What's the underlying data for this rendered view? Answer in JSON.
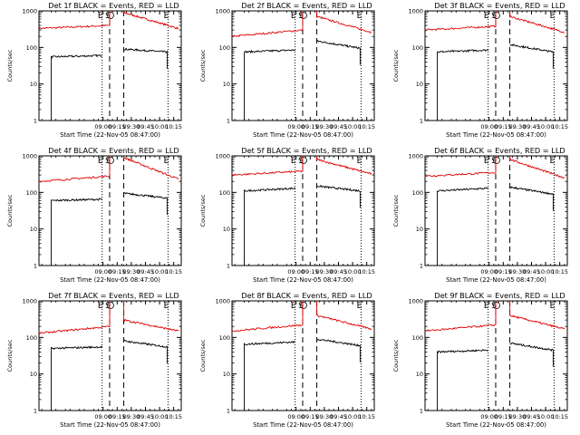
{
  "chart_data": [
    {
      "type": "line",
      "title": "Det 1f BLACK = Events, RED = LLD",
      "xlabel": "Start Time (22-Nov-05 08:47:00)",
      "ylabel": "Counts/sec",
      "xlim": [
        "07:52",
        "10:23"
      ],
      "ylim": [
        1,
        1000
      ],
      "y_scale": "log",
      "x_tick_labels": [
        "09:00",
        "09:15",
        "09:30",
        "09:45",
        "10:00",
        "10:15"
      ],
      "y_tick_labels": [
        "1",
        "10",
        "100",
        "1000"
      ],
      "markers": [
        {
          "label": "E",
          "time": "08:59"
        },
        {
          "label": "S",
          "time": "09:07"
        },
        {
          "label": "E",
          "time": "10:09"
        }
      ],
      "vlines_dotted": [
        "08:59",
        "10:09"
      ],
      "vlines_dashed": [
        "09:07",
        "09:22"
      ],
      "series": [
        {
          "name": "RED = LLD",
          "color": "#e00000",
          "segments": [
            {
              "t0": "07:52",
              "t1": "09:07",
              "y0": 330,
              "y1": 400
            },
            {
              "t0": "09:22",
              "t1": "10:20",
              "y0": 900,
              "y1": 330
            }
          ]
        },
        {
          "name": "BLACK = Events",
          "color": "#000000",
          "segments": [
            {
              "t0": "08:05",
              "t1": "08:59",
              "y0": 55,
              "y1": 60
            },
            {
              "t0": "09:22",
              "t1": "10:08",
              "y0": 90,
              "y1": 75
            }
          ]
        }
      ]
    },
    {
      "type": "line",
      "title": "Det 2f BLACK = Events, RED = LLD",
      "xlabel": "Start Time (22-Nov-05 08:47:00)",
      "ylabel": "Counts/sec",
      "xlim": [
        "07:52",
        "10:23"
      ],
      "ylim": [
        1,
        1000
      ],
      "y_scale": "log",
      "x_tick_labels": [
        "09:00",
        "09:15",
        "09:30",
        "09:45",
        "10:00",
        "10:15"
      ],
      "y_tick_labels": [
        "1",
        "10",
        "100",
        "1000"
      ],
      "markers": [
        {
          "label": "E",
          "time": "08:59"
        },
        {
          "label": "S",
          "time": "09:07"
        },
        {
          "label": "E",
          "time": "10:09"
        }
      ],
      "vlines_dotted": [
        "08:59",
        "10:09"
      ],
      "vlines_dashed": [
        "09:07",
        "09:22"
      ],
      "series": [
        {
          "name": "RED = LLD",
          "color": "#e00000",
          "segments": [
            {
              "t0": "07:52",
              "t1": "09:07",
              "y0": 200,
              "y1": 300
            },
            {
              "t0": "09:22",
              "t1": "10:20",
              "y0": 700,
              "y1": 260
            }
          ]
        },
        {
          "name": "BLACK = Events",
          "color": "#000000",
          "segments": [
            {
              "t0": "08:05",
              "t1": "08:59",
              "y0": 75,
              "y1": 85
            },
            {
              "t0": "09:22",
              "t1": "10:08",
              "y0": 150,
              "y1": 95
            }
          ]
        }
      ]
    },
    {
      "type": "line",
      "title": "Det 3f BLACK = Events, RED = LLD",
      "xlabel": "Start Time (22-Nov-05 08:47:00)",
      "ylabel": "Counts/sec",
      "xlim": [
        "07:52",
        "10:23"
      ],
      "ylim": [
        1,
        1000
      ],
      "y_scale": "log",
      "x_tick_labels": [
        "09:00",
        "09:15",
        "09:30",
        "09:45",
        "10:00",
        "10:15"
      ],
      "y_tick_labels": [
        "1",
        "10",
        "100",
        "1000"
      ],
      "markers": [
        {
          "label": "E",
          "time": "08:59"
        },
        {
          "label": "S",
          "time": "09:07"
        },
        {
          "label": "E",
          "time": "10:09"
        }
      ],
      "vlines_dotted": [
        "08:59",
        "10:09"
      ],
      "vlines_dashed": [
        "09:07",
        "09:22"
      ],
      "series": [
        {
          "name": "RED = LLD",
          "color": "#e00000",
          "segments": [
            {
              "t0": "07:52",
              "t1": "09:07",
              "y0": 300,
              "y1": 380
            },
            {
              "t0": "09:22",
              "t1": "10:20",
              "y0": 700,
              "y1": 260
            }
          ]
        },
        {
          "name": "BLACK = Events",
          "color": "#000000",
          "segments": [
            {
              "t0": "08:05",
              "t1": "08:59",
              "y0": 75,
              "y1": 85
            },
            {
              "t0": "09:22",
              "t1": "10:08",
              "y0": 120,
              "y1": 75
            }
          ]
        }
      ]
    },
    {
      "type": "line",
      "title": "Det 4f BLACK = Events, RED = LLD",
      "xlabel": "Start Time (22-Nov-05 08:47:00)",
      "ylabel": "Counts/sec",
      "xlim": [
        "07:52",
        "10:23"
      ],
      "ylim": [
        1,
        1000
      ],
      "y_scale": "log",
      "x_tick_labels": [
        "09:00",
        "09:15",
        "09:30",
        "09:45",
        "10:00",
        "10:15"
      ],
      "y_tick_labels": [
        "1",
        "10",
        "100",
        "1000"
      ],
      "markers": [
        {
          "label": "E",
          "time": "08:59"
        },
        {
          "label": "S",
          "time": "09:07"
        },
        {
          "label": "E",
          "time": "10:09"
        }
      ],
      "vlines_dotted": [
        "08:59",
        "10:09"
      ],
      "vlines_dashed": [
        "09:07",
        "09:22"
      ],
      "series": [
        {
          "name": "RED = LLD",
          "color": "#e00000",
          "segments": [
            {
              "t0": "07:52",
              "t1": "09:07",
              "y0": 200,
              "y1": 280
            },
            {
              "t0": "09:22",
              "t1": "10:20",
              "y0": 900,
              "y1": 230
            }
          ]
        },
        {
          "name": "BLACK = Events",
          "color": "#000000",
          "segments": [
            {
              "t0": "08:05",
              "t1": "08:59",
              "y0": 60,
              "y1": 65
            },
            {
              "t0": "09:22",
              "t1": "10:08",
              "y0": 95,
              "y1": 70
            }
          ]
        }
      ]
    },
    {
      "type": "line",
      "title": "Det 5f BLACK = Events, RED = LLD",
      "xlabel": "Start Time (22-Nov-05 08:47:00)",
      "ylabel": "Counts/sec",
      "xlim": [
        "07:52",
        "10:23"
      ],
      "ylim": [
        1,
        1000
      ],
      "y_scale": "log",
      "x_tick_labels": [
        "09:00",
        "09:15",
        "09:30",
        "09:45",
        "10:00",
        "10:15"
      ],
      "y_tick_labels": [
        "1",
        "10",
        "100",
        "1000"
      ],
      "markers": [
        {
          "label": "E",
          "time": "08:59"
        },
        {
          "label": "S",
          "time": "09:07"
        },
        {
          "label": "E",
          "time": "10:09"
        }
      ],
      "vlines_dotted": [
        "08:59",
        "10:09"
      ],
      "vlines_dashed": [
        "09:07",
        "09:22"
      ],
      "series": [
        {
          "name": "RED = LLD",
          "color": "#e00000",
          "segments": [
            {
              "t0": "07:52",
              "t1": "09:07",
              "y0": 300,
              "y1": 380
            },
            {
              "t0": "09:22",
              "t1": "10:20",
              "y0": 800,
              "y1": 320
            }
          ]
        },
        {
          "name": "BLACK = Events",
          "color": "#000000",
          "segments": [
            {
              "t0": "08:05",
              "t1": "08:59",
              "y0": 110,
              "y1": 130
            },
            {
              "t0": "09:22",
              "t1": "10:08",
              "y0": 150,
              "y1": 110
            }
          ]
        }
      ]
    },
    {
      "type": "line",
      "title": "Det 6f BLACK = Events, RED = LLD",
      "xlabel": "Start Time (22-Nov-05 08:47:00)",
      "ylabel": "Counts/sec",
      "xlim": [
        "07:52",
        "10:23"
      ],
      "ylim": [
        1,
        1000
      ],
      "y_scale": "log",
      "x_tick_labels": [
        "09:00",
        "09:15",
        "09:30",
        "09:45",
        "10:00",
        "10:15"
      ],
      "y_tick_labels": [
        "1",
        "10",
        "100",
        "1000"
      ],
      "markers": [
        {
          "label": "E",
          "time": "08:59"
        },
        {
          "label": "S",
          "time": "09:07"
        },
        {
          "label": "E",
          "time": "10:09"
        }
      ],
      "vlines_dotted": [
        "08:59",
        "10:09"
      ],
      "vlines_dashed": [
        "09:07",
        "09:22"
      ],
      "series": [
        {
          "name": "RED = LLD",
          "color": "#e00000",
          "segments": [
            {
              "t0": "07:52",
              "t1": "09:07",
              "y0": 280,
              "y1": 350
            },
            {
              "t0": "09:22",
              "t1": "10:20",
              "y0": 800,
              "y1": 250
            }
          ]
        },
        {
          "name": "BLACK = Events",
          "color": "#000000",
          "segments": [
            {
              "t0": "08:05",
              "t1": "08:59",
              "y0": 110,
              "y1": 130
            },
            {
              "t0": "09:22",
              "t1": "10:08",
              "y0": 140,
              "y1": 90
            }
          ]
        }
      ]
    },
    {
      "type": "line",
      "title": "Det 7f BLACK = Events, RED = LLD",
      "xlabel": "Start Time (22-Nov-05 08:47:00)",
      "ylabel": "Counts/sec",
      "xlim": [
        "07:52",
        "10:23"
      ],
      "ylim": [
        1,
        1000
      ],
      "y_scale": "log",
      "x_tick_labels": [
        "09:00",
        "09:15",
        "09:30",
        "09:45",
        "10:00",
        "10:15"
      ],
      "y_tick_labels": [
        "1",
        "10",
        "100",
        "1000"
      ],
      "markers": [
        {
          "label": "E",
          "time": "08:59"
        },
        {
          "label": "S",
          "time": "09:07"
        },
        {
          "label": "E",
          "time": "10:09"
        }
      ],
      "vlines_dotted": [
        "08:59",
        "10:09"
      ],
      "vlines_dashed": [
        "09:07",
        "09:22"
      ],
      "series": [
        {
          "name": "RED = LLD",
          "color": "#e00000",
          "segments": [
            {
              "t0": "07:52",
              "t1": "09:07",
              "y0": 130,
              "y1": 200
            },
            {
              "t0": "09:22",
              "t1": "10:20",
              "y0": 300,
              "y1": 150
            }
          ]
        },
        {
          "name": "BLACK = Events",
          "color": "#000000",
          "segments": [
            {
              "t0": "08:05",
              "t1": "08:59",
              "y0": 50,
              "y1": 55
            },
            {
              "t0": "09:22",
              "t1": "10:08",
              "y0": 80,
              "y1": 55
            }
          ]
        }
      ]
    },
    {
      "type": "line",
      "title": "Det 8f BLACK = Events, RED = LLD",
      "xlabel": "Start Time (22-Nov-05 08:47:00)",
      "ylabel": "Counts/sec",
      "xlim": [
        "07:52",
        "10:23"
      ],
      "ylim": [
        1,
        1000
      ],
      "y_scale": "log",
      "x_tick_labels": [
        "09:00",
        "09:15",
        "09:30",
        "09:45",
        "10:00",
        "10:15"
      ],
      "y_tick_labels": [
        "1",
        "10",
        "100",
        "1000"
      ],
      "markers": [
        {
          "label": "E",
          "time": "08:59"
        },
        {
          "label": "S",
          "time": "09:07"
        },
        {
          "label": "E",
          "time": "10:09"
        }
      ],
      "vlines_dotted": [
        "08:59",
        "10:09"
      ],
      "vlines_dashed": [
        "09:07",
        "09:22"
      ],
      "series": [
        {
          "name": "RED = LLD",
          "color": "#e00000",
          "segments": [
            {
              "t0": "07:52",
              "t1": "09:07",
              "y0": 150,
              "y1": 220
            },
            {
              "t0": "09:22",
              "t1": "10:20",
              "y0": 400,
              "y1": 170
            }
          ]
        },
        {
          "name": "BLACK = Events",
          "color": "#000000",
          "segments": [
            {
              "t0": "08:05",
              "t1": "08:59",
              "y0": 65,
              "y1": 75
            },
            {
              "t0": "09:22",
              "t1": "10:08",
              "y0": 90,
              "y1": 60
            }
          ]
        }
      ]
    },
    {
      "type": "line",
      "title": "Det 9f BLACK = Events, RED = LLD",
      "xlabel": "Start Time (22-Nov-05 08:47:00)",
      "ylabel": "Counts/sec",
      "xlim": [
        "07:52",
        "10:23"
      ],
      "ylim": [
        1,
        1000
      ],
      "y_scale": "log",
      "x_tick_labels": [
        "09:00",
        "09:15",
        "09:30",
        "09:45",
        "10:00",
        "10:15"
      ],
      "y_tick_labels": [
        "1",
        "10",
        "100",
        "1000"
      ],
      "markers": [
        {
          "label": "E",
          "time": "08:59"
        },
        {
          "label": "S",
          "time": "09:07"
        },
        {
          "label": "E",
          "time": "10:09"
        }
      ],
      "vlines_dotted": [
        "08:59",
        "10:09"
      ],
      "vlines_dashed": [
        "09:07",
        "09:22"
      ],
      "series": [
        {
          "name": "RED = LLD",
          "color": "#e00000",
          "segments": [
            {
              "t0": "07:52",
              "t1": "09:07",
              "y0": 150,
              "y1": 220
            },
            {
              "t0": "09:22",
              "t1": "10:20",
              "y0": 400,
              "y1": 170
            }
          ]
        },
        {
          "name": "BLACK = Events",
          "color": "#000000",
          "segments": [
            {
              "t0": "08:05",
              "t1": "08:59",
              "y0": 40,
              "y1": 45
            },
            {
              "t0": "09:22",
              "t1": "10:08",
              "y0": 70,
              "y1": 45
            }
          ]
        }
      ]
    }
  ]
}
